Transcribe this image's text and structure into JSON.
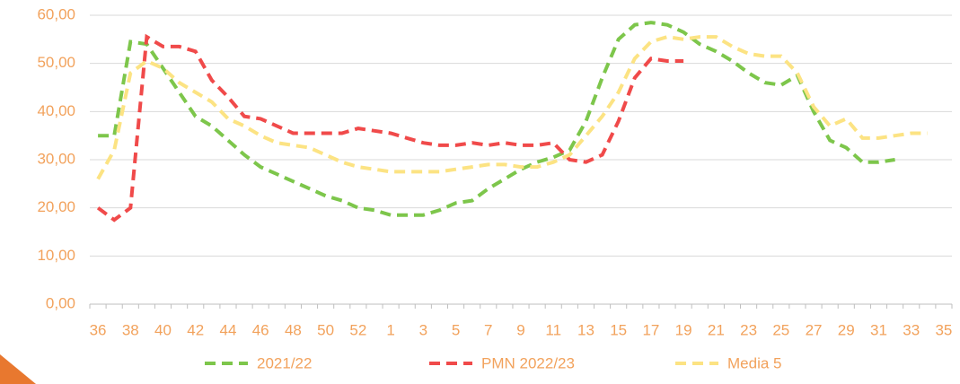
{
  "chart_data": {
    "type": "line",
    "categories": [
      "36",
      null,
      "38",
      null,
      "40",
      null,
      "42",
      null,
      "44",
      null,
      "46",
      null,
      "48",
      null,
      "50",
      null,
      "52",
      null,
      "1",
      null,
      "3",
      null,
      "5",
      null,
      "7",
      null,
      "9",
      null,
      "11",
      null,
      "13",
      null,
      "15",
      null,
      "17",
      null,
      "19",
      null,
      "21",
      null,
      "23",
      null,
      "25",
      null,
      "27",
      null,
      "29",
      null,
      "31",
      null,
      "33",
      null,
      "35"
    ],
    "series": [
      {
        "name": "2021/22",
        "color": "#7dc64b",
        "values": [
          35,
          35,
          54.5,
          54,
          49,
          44,
          39,
          37,
          34,
          31,
          28.5,
          27,
          25.5,
          24,
          22.5,
          21.5,
          20,
          19.5,
          18.5,
          18.5,
          18.5,
          19.5,
          21,
          21.5,
          24,
          26,
          28,
          29.5,
          30.5,
          32,
          38,
          47,
          55,
          58,
          58.5,
          58,
          56.5,
          54,
          52.5,
          50.5,
          48,
          46,
          45.5,
          47.5,
          40,
          34,
          32.5,
          29.5,
          29.5,
          30,
          null,
          null,
          null
        ]
      },
      {
        "name": "PMN 2022/23",
        "color": "#f04a4a",
        "values": [
          20,
          17.5,
          20,
          55.5,
          53.5,
          53.5,
          52.5,
          46.5,
          43,
          39,
          38.5,
          37,
          35.5,
          35.5,
          35.5,
          35.5,
          36.5,
          36,
          35.5,
          34.5,
          33.5,
          33,
          33,
          33.5,
          33,
          33.5,
          33,
          33,
          33.5,
          30,
          29.5,
          31,
          38,
          47,
          51,
          50.5,
          50.5,
          null,
          null,
          null,
          null,
          null,
          null,
          null,
          null,
          null,
          null,
          null,
          null,
          null,
          null,
          null,
          null
        ]
      },
      {
        "name": "Media 5",
        "color": "#fce383",
        "values": [
          26,
          32,
          48,
          50.5,
          49,
          46,
          44,
          42,
          38.5,
          37,
          35,
          33.5,
          33,
          32.5,
          31,
          29.5,
          28.5,
          28,
          27.5,
          27.5,
          27.5,
          27.5,
          28,
          28.5,
          29,
          29,
          28.5,
          28.5,
          29.5,
          31,
          35,
          39,
          44,
          51,
          54.5,
          55.5,
          55,
          55.5,
          55.5,
          53.5,
          52,
          51.5,
          51.5,
          48,
          41,
          37,
          38.5,
          34.5,
          34.5,
          35,
          35.5,
          35.5,
          null
        ]
      }
    ],
    "ylim": [
      0,
      60
    ],
    "yticks": [
      {
        "value": 0,
        "label": "0,00"
      },
      {
        "value": 10,
        "label": "10,00"
      },
      {
        "value": 20,
        "label": "20,00"
      },
      {
        "value": 30,
        "label": "30,00"
      },
      {
        "value": 40,
        "label": "40,00"
      },
      {
        "value": 50,
        "label": "50,00"
      },
      {
        "value": 60,
        "label": "60,00"
      }
    ],
    "grid": true,
    "legend": "bottom"
  }
}
